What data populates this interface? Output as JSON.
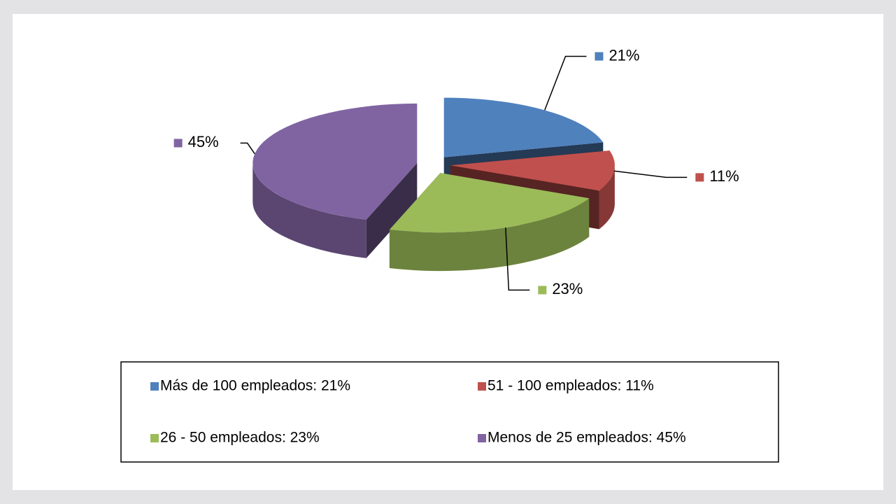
{
  "chart_data": {
    "type": "pie3d",
    "categories": [
      "Más de 100 empleados",
      "51 - 100 empleados",
      "26 - 50 empleados",
      "Menos de 25 empleados"
    ],
    "values": [
      21,
      11,
      23,
      45
    ],
    "value_labels": [
      "21%",
      "11%",
      "23%",
      "45%"
    ],
    "legend_labels": [
      "Más de 100 empleados: 21%",
      "51 - 100 empleados: 11%",
      "26 - 50 empleados: 23%",
      "Menos de 25 empleados: 45%"
    ],
    "colors": [
      "#4f81bd",
      "#c0504d",
      "#9bbb59",
      "#8064a2"
    ],
    "legend": "bottom"
  }
}
